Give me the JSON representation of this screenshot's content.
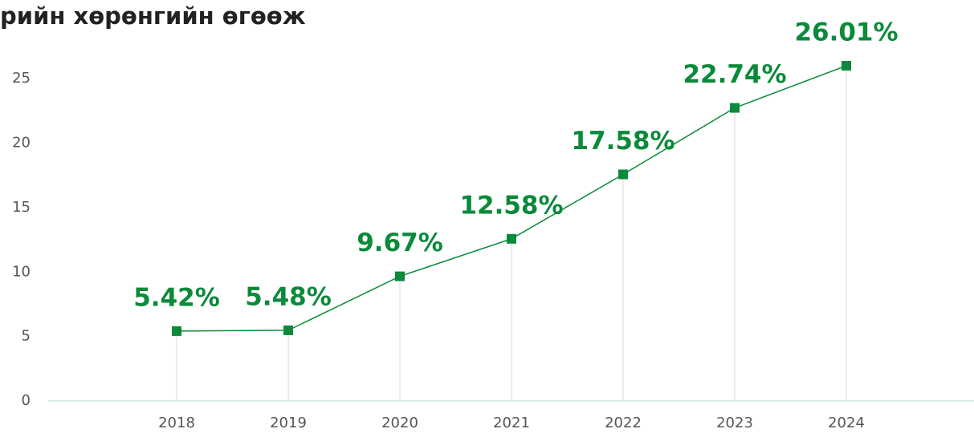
{
  "chart_data": {
    "type": "line",
    "title": "рийн хөрөнгийн өгөөж",
    "categories": [
      "2018",
      "2019",
      "2020",
      "2021",
      "2022",
      "2023",
      "2024"
    ],
    "series": [
      {
        "color": "#0a8a3a",
        "values": [
          5.42,
          5.48,
          9.67,
          12.58,
          17.58,
          22.74,
          26.01
        ],
        "value_labels": [
          "5.42%",
          "5.48%",
          "9.67%",
          "12.58%",
          "17.58%",
          "22.74%",
          "26.01%"
        ]
      }
    ],
    "ylim": [
      0,
      28
    ],
    "yticks": [
      0,
      5,
      10,
      15,
      20,
      25
    ],
    "grid": false
  }
}
